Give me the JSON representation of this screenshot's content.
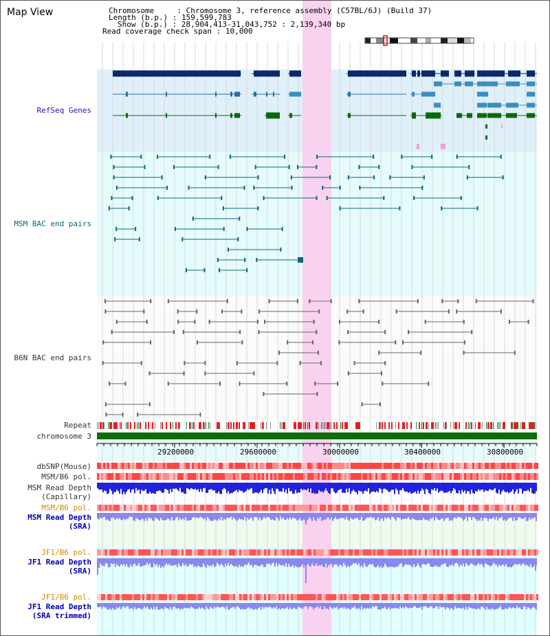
{
  "title": "Map View",
  "header": {
    "chromosome_key": "Chromosome",
    "chromosome_val": "Chromosome 3, reference assembly (C57BL/6J) (Build 37)",
    "length_key": "Length (b.p.)",
    "length_val": "159,599,783",
    "show_key": "Show (b.p.)",
    "show_val": "28,904,413-31,043,752 : 2,139,340 bp",
    "coverage_key": "Read coverage check span",
    "coverage_val": "10,000"
  },
  "tracks": {
    "refseq": "RefSeq Genes",
    "msm_bac": "MSM BAC end pairs",
    "b6n_bac": "B6N BAC end pairs",
    "repeat": "Repeat",
    "chromosome": "chromosome 3",
    "dbsnp": "dbSNP(Mouse)",
    "msm_b6_pol_1": "MSM/B6 pol.",
    "msm_depth_cap_1": "MSM Read Depth",
    "msm_depth_cap_2": "(Capillary)",
    "msm_b6_pol_2": "MSM/B6 pol.",
    "msm_depth_sra_1": "MSM Read Depth",
    "msm_depth_sra_2": "(SRA)",
    "jf1_b6_pol_1": "JF1/B6 pol.",
    "jf1_depth_sra_1": "JF1 Read Depth",
    "jf1_depth_sra_2": "(SRA)",
    "jf1_b6_pol_2": "JF1/B6 pol.",
    "jf1_depth_trim_1": "JF1 Read Depth",
    "jf1_depth_trim_2": "(SRA trimmed)"
  },
  "axis_ticks": [
    "29200000",
    "29600000",
    "30000000",
    "30400000",
    "30800000"
  ],
  "colors": {
    "refseq_bg": "#dff0fa",
    "msm_bg": "#e6fbfb",
    "highlight": "#f9d2f0",
    "gene_dark": "#0a2a66",
    "gene_mid": "#2a6f9e",
    "gene_light": "#3a8fbf",
    "gene_green": "#0a6a0a",
    "bac_teal": "#0b6a7a",
    "bac_gray": "#666666",
    "chrom_green": "#0a6e0a",
    "pol_red": "#ee4444",
    "depth_blue": "#2222dd",
    "depth_light": "#8888ee"
  }
}
